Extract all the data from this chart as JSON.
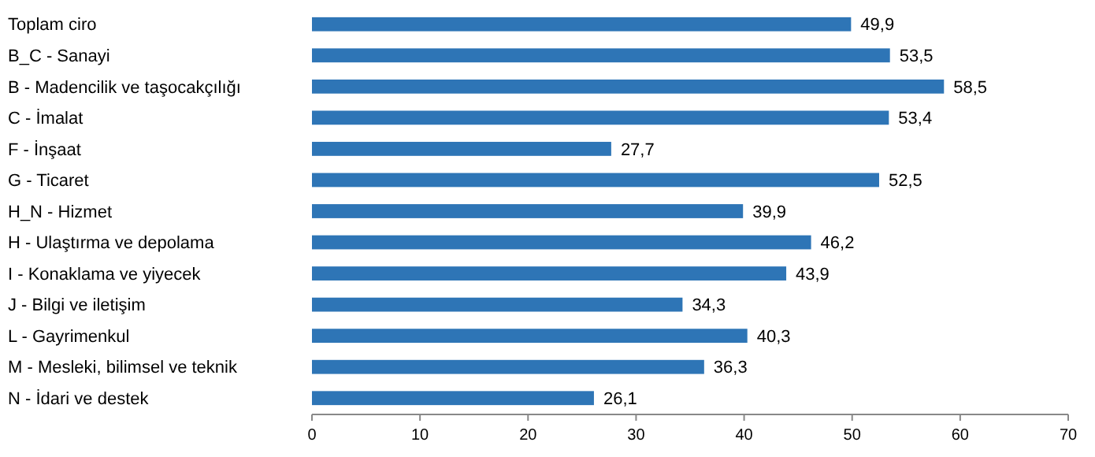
{
  "chart_data": {
    "type": "bar",
    "orientation": "horizontal",
    "categories": [
      "Toplam ciro",
      "B_C - Sanayi",
      "B - Madencilik ve taşocakçılığı",
      "C - İmalat",
      "F - İnşaat",
      "G - Ticaret",
      "H_N - Hizmet",
      "H - Ulaştırma ve depolama",
      "I - Konaklama ve yiyecek",
      "J - Bilgi ve iletişim",
      "L - Gayrimenkul",
      "M - Mesleki, bilimsel ve teknik",
      "N - İdari ve destek"
    ],
    "values": [
      49.9,
      53.5,
      58.5,
      53.4,
      27.7,
      52.5,
      39.9,
      46.2,
      43.9,
      34.3,
      40.3,
      36.3,
      26.1
    ],
    "value_labels": [
      "49,9",
      "53,5",
      "58,5",
      "53,4",
      "27,7",
      "52,5",
      "39,9",
      "46,2",
      "43,9",
      "34,3",
      "40,3",
      "36,3",
      "26,1"
    ],
    "color": "#2e75b6",
    "xlim": [
      0,
      70
    ],
    "xticks": [
      0,
      10,
      20,
      30,
      40,
      50,
      60,
      70
    ],
    "grid": false
  }
}
